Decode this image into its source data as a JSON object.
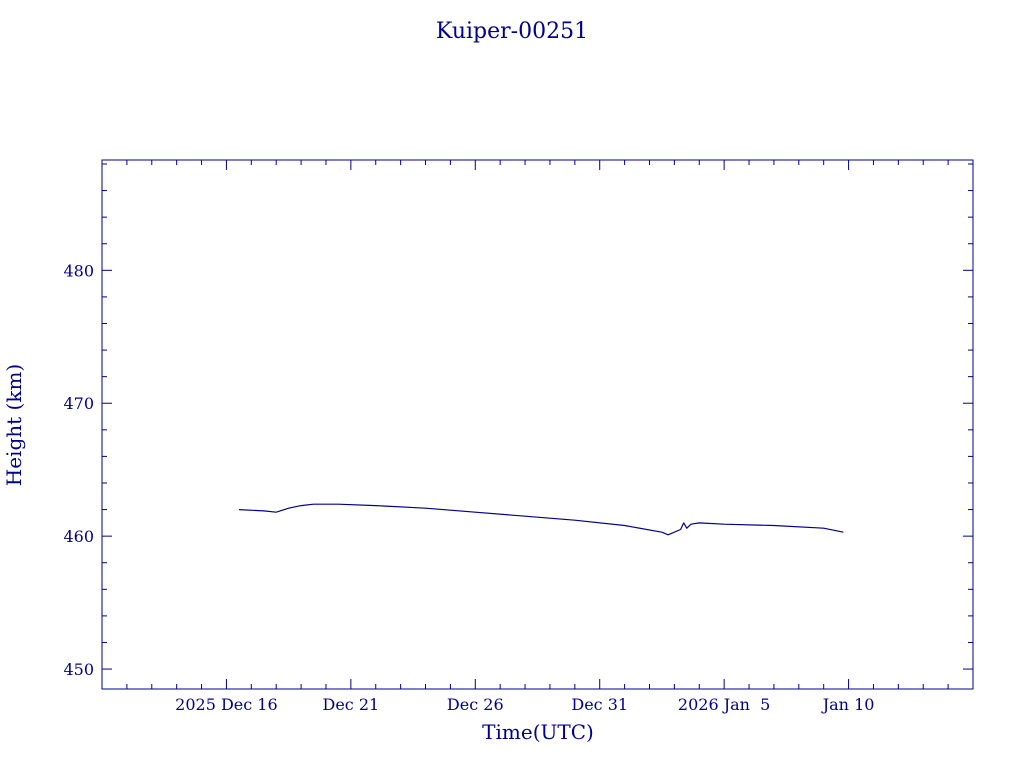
{
  "chart_data": {
    "type": "line",
    "title": "Kuiper-00251",
    "xlabel": "Time(UTC)",
    "ylabel": "Height (km)",
    "color": "#00008b",
    "x_unit": "date (UTC)",
    "xlim": [
      "2025-12-11",
      "2026-01-15"
    ],
    "ylim": [
      448.5,
      488.3
    ],
    "y_ticks": [
      450,
      460,
      470,
      480
    ],
    "y_tick_labels": [
      "450",
      "460",
      "470",
      "480"
    ],
    "x_ticks": [
      "2025-12-16",
      "2025-12-21",
      "2025-12-26",
      "2025-12-31",
      "2026-01-05",
      "2026-01-10"
    ],
    "x_tick_labels": [
      "2025 Dec 16",
      "Dec 21",
      "Dec 26",
      "Dec 31",
      "2026 Jan  5",
      "Jan 10"
    ],
    "grid": false,
    "series": [
      {
        "x": [
          "2025-12-16 12:00",
          "2025-12-17 12:00",
          "2025-12-18 00:00",
          "2025-12-18 12:00",
          "2025-12-19 00:00",
          "2025-12-19 12:00",
          "2025-12-20 12:00",
          "2025-12-22 00:00",
          "2025-12-24 00:00",
          "2025-12-26 00:00",
          "2025-12-28 00:00",
          "2025-12-30 00:00",
          "2026-01-01 00:00",
          "2026-01-02 12:00",
          "2026-01-02 18:00",
          "2026-01-03 06:00",
          "2026-01-03 09:00",
          "2026-01-03 12:00",
          "2026-01-03 16:00",
          "2026-01-04 00:00",
          "2026-01-05 00:00",
          "2026-01-07 00:00",
          "2026-01-09 00:00",
          "2026-01-09 19:00"
        ],
        "y": [
          462.0,
          461.9,
          461.8,
          462.1,
          462.3,
          462.4,
          462.4,
          462.3,
          462.1,
          461.8,
          461.5,
          461.2,
          460.8,
          460.3,
          460.1,
          460.5,
          461.0,
          460.6,
          460.9,
          461.0,
          460.9,
          460.8,
          460.6,
          460.3
        ]
      }
    ]
  }
}
